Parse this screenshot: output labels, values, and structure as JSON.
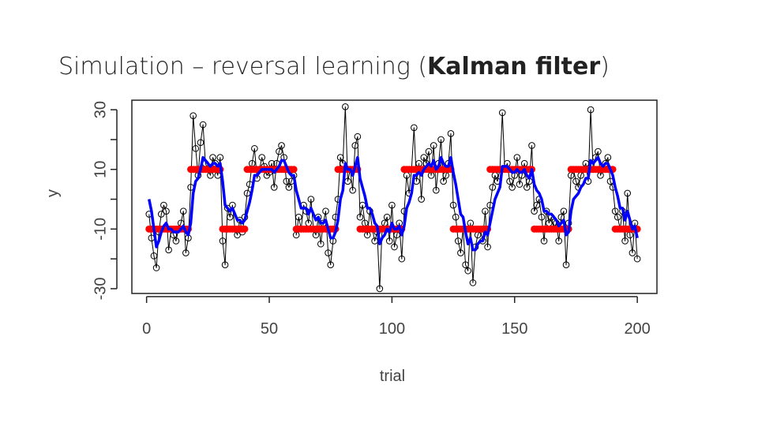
{
  "chart_data": {
    "type": "scatter",
    "title": [
      "Simulation – reversal learning (",
      "Kalman filter",
      ")"
    ],
    "xlabel": "trial",
    "ylabel": "y",
    "xlim": [
      -6,
      208
    ],
    "ylim": [
      -31.6,
      33.2
    ],
    "xticks": [
      0,
      50,
      100,
      150,
      200
    ],
    "yticks": [
      -30,
      {
        "value": -20,
        "label": null
      },
      -10,
      {
        "value": 0,
        "label": null
      },
      10,
      {
        "value": 20,
        "label": null
      },
      30
    ],
    "x": [
      1,
      2,
      3,
      4,
      5,
      6,
      7,
      8,
      9,
      10,
      11,
      12,
      13,
      14,
      15,
      16,
      17,
      18,
      19,
      20,
      21,
      22,
      23,
      24,
      25,
      26,
      27,
      28,
      29,
      30,
      31,
      32,
      33,
      34,
      35,
      36,
      37,
      38,
      39,
      40,
      41,
      42,
      43,
      44,
      45,
      46,
      47,
      48,
      49,
      50,
      51,
      52,
      53,
      54,
      55,
      56,
      57,
      58,
      59,
      60,
      61,
      62,
      63,
      64,
      65,
      66,
      67,
      68,
      69,
      70,
      71,
      72,
      73,
      74,
      75,
      76,
      77,
      78,
      79,
      80,
      81,
      82,
      83,
      84,
      85,
      86,
      87,
      88,
      89,
      90,
      91,
      92,
      93,
      94,
      95,
      96,
      97,
      98,
      99,
      100,
      101,
      102,
      103,
      104,
      105,
      106,
      107,
      108,
      109,
      110,
      111,
      112,
      113,
      114,
      115,
      116,
      117,
      118,
      119,
      120,
      121,
      122,
      123,
      124,
      125,
      126,
      127,
      128,
      129,
      130,
      131,
      132,
      133,
      134,
      135,
      136,
      137,
      138,
      139,
      140,
      141,
      142,
      143,
      144,
      145,
      146,
      147,
      148,
      149,
      150,
      151,
      152,
      153,
      154,
      155,
      156,
      157,
      158,
      159,
      160,
      161,
      162,
      163,
      164,
      165,
      166,
      167,
      168,
      169,
      170,
      171,
      172,
      173,
      174,
      175,
      176,
      177,
      178,
      179,
      180,
      181,
      182,
      183,
      184,
      185,
      186,
      187,
      188,
      189,
      190,
      191,
      192,
      193,
      194,
      195,
      196,
      197,
      198,
      199,
      200
    ],
    "series": [
      {
        "color": "#000000",
        "mode": "lines+markers",
        "values": [
          -5,
          -13,
          -19,
          -23,
          -11,
          -5,
          -2,
          -4,
          -17,
          -10,
          -12,
          -14,
          -10,
          -8,
          -4,
          -18,
          -13,
          4,
          28,
          17,
          8,
          19,
          25,
          12,
          10,
          8,
          14,
          12,
          8,
          14,
          -14,
          -22,
          -3,
          -6,
          -2,
          -10,
          -12,
          -7,
          -11,
          -6,
          2,
          5,
          12,
          17,
          7,
          10,
          14,
          11,
          8,
          9,
          12,
          4,
          12,
          16,
          18,
          14,
          6,
          4,
          6,
          8,
          -12,
          -6,
          -10,
          -2,
          -4,
          -8,
          0,
          -10,
          -12,
          -6,
          -15,
          -8,
          -4,
          -18,
          -22,
          -14,
          -6,
          0,
          14,
          12,
          31,
          6,
          10,
          3,
          18,
          21,
          -6,
          -2,
          -8,
          -12,
          -4,
          -10,
          -14,
          -11,
          -30,
          -10,
          -8,
          -6,
          -14,
          -2,
          -16,
          -12,
          -8,
          -20,
          -4,
          8,
          2,
          10,
          24,
          6,
          12,
          0,
          14,
          12,
          16,
          8,
          18,
          3,
          12,
          20,
          6,
          8,
          12,
          22,
          -2,
          -6,
          -14,
          -18,
          -10,
          -22,
          -24,
          -8,
          -28,
          -16,
          -12,
          -10,
          -14,
          -4,
          -16,
          -2,
          4,
          8,
          6,
          10,
          29,
          10,
          12,
          6,
          4,
          8,
          14,
          5,
          8,
          12,
          4,
          6,
          18,
          -4,
          -2,
          0,
          -6,
          -14,
          -4,
          -8,
          -6,
          -10,
          -8,
          -14,
          -6,
          -4,
          -22,
          -8,
          8,
          10,
          6,
          4,
          8,
          10,
          12,
          6,
          30,
          10,
          14,
          16,
          8,
          10,
          12,
          14,
          6,
          4,
          -4,
          -6,
          -10,
          -4,
          -14,
          2,
          -12,
          -18,
          -8,
          -20
        ]
      },
      {
        "color": "#ff0000",
        "mode": "markers",
        "values": [
          -10,
          -10,
          -10,
          -10,
          -10,
          -10,
          -10,
          -10,
          -10,
          -10,
          -10,
          -10,
          -10,
          -10,
          -10,
          -10,
          -10,
          10,
          10,
          10,
          10,
          10,
          10,
          10,
          10,
          10,
          10,
          10,
          10,
          10,
          -10,
          -10,
          -10,
          -10,
          -10,
          -10,
          -10,
          -10,
          -10,
          -10,
          10,
          10,
          10,
          10,
          10,
          10,
          10,
          10,
          10,
          10,
          10,
          10,
          10,
          10,
          10,
          10,
          10,
          10,
          10,
          10,
          -10,
          -10,
          -10,
          -10,
          -10,
          -10,
          -10,
          -10,
          -10,
          -10,
          -10,
          -10,
          -10,
          -10,
          -10,
          -10,
          -10,
          10,
          10,
          10,
          10,
          10,
          10,
          10,
          10,
          10,
          -10,
          -10,
          -10,
          -10,
          -10,
          -10,
          -10,
          -10,
          -10,
          -10,
          -10,
          -10,
          -10,
          -10,
          -10,
          -10,
          -10,
          -10,
          10,
          10,
          10,
          10,
          10,
          10,
          10,
          10,
          10,
          10,
          10,
          10,
          10,
          10,
          10,
          10,
          10,
          10,
          10,
          10,
          -10,
          -10,
          -10,
          -10,
          -10,
          -10,
          -10,
          -10,
          -10,
          -10,
          -10,
          -10,
          -10,
          -10,
          -10,
          10,
          10,
          10,
          10,
          10,
          10,
          10,
          10,
          10,
          10,
          10,
          10,
          10,
          10,
          10,
          10,
          10,
          10,
          -10,
          -10,
          -10,
          -10,
          -10,
          -10,
          -10,
          -10,
          -10,
          -10,
          -10,
          -10,
          -10,
          -10,
          -10,
          10,
          10,
          10,
          10,
          10,
          10,
          10,
          10,
          10,
          10,
          10,
          10,
          10,
          10,
          10,
          10,
          10,
          10,
          -10,
          -10,
          -10,
          -10,
          -10,
          -10,
          -10,
          -10,
          -10,
          -10
        ]
      },
      {
        "color": "#0000ff",
        "mode": "lines",
        "values": [
          0,
          -4,
          -10,
          -16,
          -14,
          -11,
          -9,
          -8,
          -10,
          -10,
          -11,
          -11,
          -11,
          -10,
          -9,
          -11,
          -12,
          -8,
          2,
          6,
          7,
          10,
          14,
          13,
          12,
          11,
          12,
          12,
          11,
          12,
          6,
          -2,
          -3,
          -4,
          -3,
          -5,
          -7,
          -7,
          -8,
          -7,
          -4,
          -1,
          3,
          8,
          8,
          9,
          10,
          10,
          10,
          10,
          10,
          9,
          10,
          11,
          13,
          13,
          11,
          9,
          8,
          8,
          3,
          0,
          -3,
          -3,
          -3,
          -5,
          -3,
          -5,
          -7,
          -6,
          -8,
          -8,
          -7,
          -10,
          -13,
          -13,
          -11,
          -7,
          0,
          3,
          12,
          10,
          10,
          8,
          11,
          14,
          7,
          4,
          1,
          -3,
          -3,
          -5,
          -8,
          -9,
          -15,
          -13,
          -12,
          -10,
          -11,
          -8,
          -10,
          -10,
          -9,
          -12,
          -9,
          -3,
          -1,
          2,
          8,
          8,
          9,
          8,
          10,
          11,
          12,
          11,
          13,
          10,
          11,
          14,
          12,
          11,
          11,
          14,
          9,
          5,
          0,
          -5,
          -6,
          -11,
          -15,
          -13,
          -17,
          -17,
          -15,
          -14,
          -14,
          -11,
          -12,
          -8,
          -4,
          0,
          2,
          4,
          11,
          11,
          11,
          10,
          9,
          9,
          10,
          9,
          9,
          10,
          8,
          7,
          10,
          5,
          3,
          2,
          0,
          -4,
          -4,
          -5,
          -5,
          -6,
          -7,
          -9,
          -8,
          -7,
          -12,
          -11,
          -4,
          0,
          1,
          2,
          4,
          5,
          7,
          7,
          13,
          12,
          13,
          14,
          12,
          11,
          12,
          12,
          10,
          8,
          4,
          1,
          -3,
          -3,
          -7,
          -4,
          -7,
          -10,
          -9,
          -13
        ]
      }
    ]
  }
}
